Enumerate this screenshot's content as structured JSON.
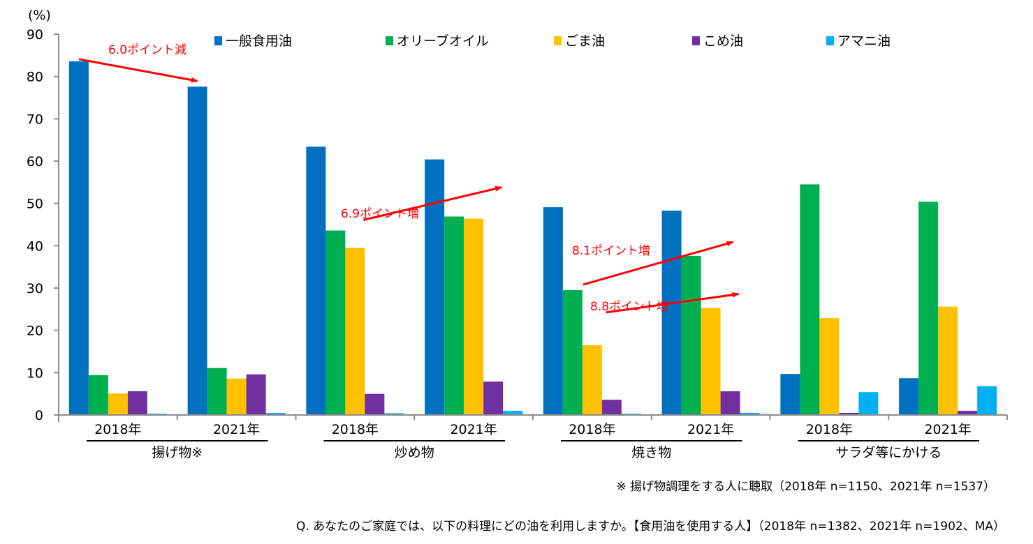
{
  "chart_data": {
    "type": "bar",
    "title": "",
    "ylabel": "(%)",
    "xlabel": "",
    "ylim": [
      0,
      90
    ],
    "yticks": [
      0,
      10,
      20,
      30,
      40,
      50,
      60,
      70,
      80,
      90
    ],
    "grid": false,
    "legend_position": "top",
    "groups": [
      {
        "label": "揚げ物※",
        "years": [
          "2018年",
          "2021年"
        ]
      },
      {
        "label": "炒め物",
        "years": [
          "2018年",
          "2021年"
        ]
      },
      {
        "label": "焼き物",
        "years": [
          "2018年",
          "2021年"
        ]
      },
      {
        "label": "サラダ等にかける",
        "years": [
          "2018年",
          "2021年"
        ]
      }
    ],
    "categories": [
      "揚げ物※ 2018年",
      "揚げ物※ 2021年",
      "炒め物 2018年",
      "炒め物 2021年",
      "焼き物 2018年",
      "焼き物 2021年",
      "サラダ等にかける 2018年",
      "サラダ等にかける 2021年"
    ],
    "series": [
      {
        "name": "一般食用油",
        "color": "#0070c0",
        "values": [
          83.6,
          77.6,
          63.4,
          60.4,
          49.1,
          48.3,
          9.7,
          8.7
        ]
      },
      {
        "name": "オリーブオイル",
        "color": "#00b050",
        "values": [
          9.4,
          11.1,
          43.6,
          46.9,
          29.5,
          37.6,
          54.5,
          50.4
        ]
      },
      {
        "name": "ごま油",
        "color": "#ffc000",
        "values": [
          5.1,
          8.6,
          39.5,
          46.4,
          16.5,
          25.3,
          22.9,
          25.6
        ]
      },
      {
        "name": "こめ油",
        "color": "#7030a0",
        "values": [
          5.6,
          9.6,
          5.0,
          7.9,
          3.6,
          5.6,
          0.5,
          1.0
        ]
      },
      {
        "name": "アマニ油",
        "color": "#00b0f0",
        "values": [
          0.3,
          0.5,
          0.4,
          1.0,
          0.3,
          0.5,
          5.4,
          6.8
        ]
      }
    ],
    "annotations": [
      {
        "text": "6.0ポイント減",
        "series": "一般食用油",
        "group": "揚げ物※",
        "direction": "decrease",
        "color": "#ff0000"
      },
      {
        "text": "6.9ポイント増",
        "series": "ごま油",
        "group": "炒め物",
        "direction": "increase",
        "color": "#ff0000"
      },
      {
        "text": "8.1ポイント増",
        "series": "オリーブオイル",
        "group": "焼き物",
        "direction": "increase",
        "color": "#ff0000"
      },
      {
        "text": "8.8ポイント増",
        "series": "ごま油",
        "group": "焼き物",
        "direction": "increase",
        "color": "#ff0000"
      }
    ]
  },
  "notes": {
    "note1": "※ 揚げ物調理をする人に聴取（2018年 n=1150、2021年 n=1537）",
    "note2": "Q. あなたのご家庭では、以下の料理にどの油を利用しますか。【食用油を使用する人】（2018年 n=1382、2021年 n=1902、MA）"
  }
}
